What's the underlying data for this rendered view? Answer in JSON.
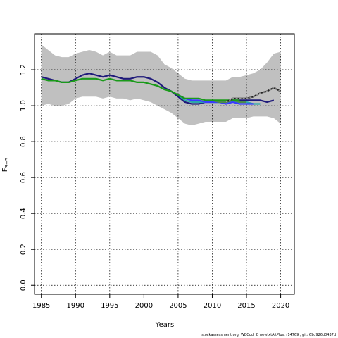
{
  "chart_data": {
    "type": "line",
    "xlabel": "Years",
    "ylabel": "F",
    "ylabel_sub": "3−5",
    "xlim": [
      1984,
      2022
    ],
    "ylim": [
      -0.05,
      1.4
    ],
    "xticks": [
      1985,
      1990,
      1995,
      2000,
      2005,
      2010,
      2015,
      2020
    ],
    "yticks": [
      0.0,
      0.2,
      0.4,
      0.6,
      0.8,
      1.0,
      1.2
    ],
    "grid": true,
    "footer": "stockassessment.org,  WBCod_IB newtxtAltPlus,  r14769 ,  git: 69d926d0437d",
    "confidence_band": {
      "x": [
        1985,
        1986,
        1987,
        1988,
        1989,
        1990,
        1991,
        1992,
        1993,
        1994,
        1995,
        1996,
        1997,
        1998,
        1999,
        2000,
        2001,
        2002,
        2003,
        2004,
        2005,
        2006,
        2007,
        2008,
        2009,
        2010,
        2011,
        2012,
        2013,
        2014,
        2015,
        2016,
        2017,
        2018,
        2019,
        2020
      ],
      "upper": [
        1.34,
        1.31,
        1.28,
        1.27,
        1.27,
        1.29,
        1.3,
        1.31,
        1.3,
        1.28,
        1.3,
        1.28,
        1.28,
        1.28,
        1.3,
        1.3,
        1.3,
        1.28,
        1.23,
        1.21,
        1.18,
        1.15,
        1.14,
        1.14,
        1.14,
        1.14,
        1.14,
        1.14,
        1.16,
        1.16,
        1.17,
        1.18,
        1.2,
        1.24,
        1.29,
        1.3
      ],
      "lower": [
        1.0,
        1.01,
        1.0,
        1.0,
        1.01,
        1.04,
        1.05,
        1.05,
        1.05,
        1.04,
        1.05,
        1.04,
        1.04,
        1.03,
        1.04,
        1.03,
        1.02,
        1.0,
        0.98,
        0.96,
        0.93,
        0.9,
        0.89,
        0.9,
        0.91,
        0.91,
        0.91,
        0.91,
        0.93,
        0.93,
        0.93,
        0.94,
        0.94,
        0.94,
        0.93,
        0.9
      ]
    },
    "series": [
      {
        "color": "#1f1a7a",
        "x": [
          1985,
          1986,
          1987,
          1988,
          1989,
          1990,
          1991,
          1992,
          1993,
          1994,
          1995,
          1996,
          1997,
          1998,
          1999,
          2000,
          2001,
          2002,
          2003,
          2004,
          2005,
          2006,
          2007,
          2008,
          2009,
          2010,
          2011,
          2012,
          2013,
          2014,
          2015,
          2016,
          2017,
          2018,
          2019
        ],
        "y": [
          1.16,
          1.15,
          1.14,
          1.13,
          1.13,
          1.15,
          1.17,
          1.18,
          1.17,
          1.16,
          1.17,
          1.16,
          1.15,
          1.15,
          1.16,
          1.16,
          1.15,
          1.13,
          1.1,
          1.08,
          1.05,
          1.02,
          1.01,
          1.01,
          1.02,
          1.02,
          1.02,
          1.02,
          1.03,
          1.03,
          1.03,
          1.03,
          1.03,
          1.02,
          1.03
        ]
      },
      {
        "color": "#2aa8a8",
        "x": [
          2005,
          2006,
          2007,
          2008,
          2009,
          2010,
          2011,
          2012,
          2013,
          2014,
          2015,
          2016,
          2017
        ],
        "y": [
          1.06,
          1.03,
          1.02,
          1.02,
          1.02,
          1.02,
          1.02,
          1.02,
          1.02,
          1.02,
          1.02,
          1.01,
          1.01
        ]
      },
      {
        "color": "#3a3aff",
        "x": [
          2005,
          2006,
          2007,
          2008,
          2009,
          2010,
          2011,
          2012,
          2013,
          2014,
          2015,
          2016
        ],
        "y": [
          1.06,
          1.04,
          1.03,
          1.03,
          1.02,
          1.02,
          1.02,
          1.01,
          1.02,
          1.01,
          1.01,
          1.01
        ]
      },
      {
        "color": "#4a8a4a",
        "x": [
          2010,
          2011,
          2012,
          2013,
          2014,
          2015
        ],
        "y": [
          1.03,
          1.02,
          1.02,
          1.03,
          1.02,
          1.02
        ]
      },
      {
        "color": "#1a9a1a",
        "x": [
          1985,
          1986,
          1987,
          1988,
          1989,
          1990,
          1991,
          1992,
          1993,
          1994,
          1995,
          1996,
          1997,
          1998,
          1999,
          2000,
          2001,
          2002,
          2003,
          2004,
          2005,
          2006,
          2007,
          2008,
          2009,
          2010,
          2011,
          2012,
          2013,
          2014
        ],
        "y": [
          1.15,
          1.14,
          1.14,
          1.13,
          1.13,
          1.14,
          1.15,
          1.15,
          1.15,
          1.14,
          1.15,
          1.14,
          1.14,
          1.14,
          1.13,
          1.13,
          1.12,
          1.11,
          1.09,
          1.08,
          1.06,
          1.04,
          1.04,
          1.04,
          1.03,
          1.03,
          1.03,
          1.03,
          1.03,
          1.03
        ]
      },
      {
        "color": "#222222",
        "x": [
          2012,
          2013,
          2014,
          2015,
          2016,
          2017,
          2018,
          2019,
          2020
        ],
        "y": [
          1.02,
          1.04,
          1.04,
          1.04,
          1.05,
          1.07,
          1.08,
          1.1,
          1.08
        ]
      },
      {
        "color": "#999999",
        "dashed": true,
        "x": [
          2012,
          2013,
          2014,
          2015,
          2016,
          2017,
          2018,
          2019,
          2020
        ],
        "y": [
          1.02,
          1.04,
          1.04,
          1.04,
          1.05,
          1.07,
          1.08,
          1.1,
          1.08
        ]
      }
    ]
  }
}
